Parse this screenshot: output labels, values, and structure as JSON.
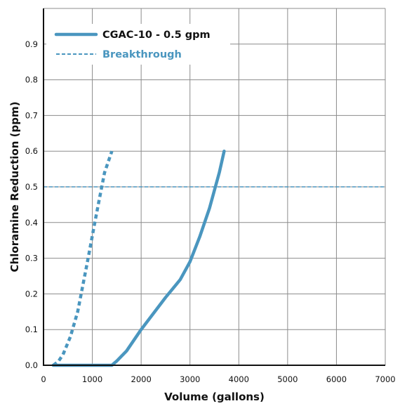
{
  "chart_data": {
    "type": "line",
    "title": "",
    "xlabel": "Volume (gallons)",
    "ylabel": "Chloramine Reduction (ppm)",
    "xlim": [
      0,
      7000
    ],
    "ylim": [
      0,
      1.0
    ],
    "x_ticks": [
      "0",
      "1000",
      "2000",
      "3000",
      "4000",
      "5000",
      "6000",
      "7000"
    ],
    "y_ticks": [
      "0.0",
      "0.1",
      "0.2",
      "0.3",
      "0.4",
      "0.5",
      "0.6",
      "0.7",
      "0.8",
      "0.9"
    ],
    "grid": true,
    "legend_position": "top-left",
    "series": [
      {
        "name": "CGAC-10 - 0.5 gpm",
        "style": "solid",
        "color": "#4a96bf",
        "points": [
          [
            200,
            0.0
          ],
          [
            1000,
            0.0
          ],
          [
            1400,
            0.0
          ],
          [
            1500,
            0.012
          ],
          [
            1700,
            0.04
          ],
          [
            2000,
            0.1
          ],
          [
            2500,
            0.19
          ],
          [
            2800,
            0.24
          ],
          [
            3000,
            0.29
          ],
          [
            3200,
            0.36
          ],
          [
            3400,
            0.44
          ],
          [
            3600,
            0.54
          ],
          [
            3700,
            0.6
          ]
        ]
      },
      {
        "name": "Breakthrough",
        "style": "dashed",
        "color": "#4a96bf",
        "points": [
          [
            200,
            0.0
          ],
          [
            300,
            0.01
          ],
          [
            400,
            0.03
          ],
          [
            550,
            0.08
          ],
          [
            700,
            0.15
          ],
          [
            900,
            0.29
          ],
          [
            1050,
            0.4
          ],
          [
            1150,
            0.47
          ],
          [
            1250,
            0.54
          ],
          [
            1400,
            0.6
          ]
        ]
      },
      {
        "name": "",
        "style": "thin-dashed",
        "color": "#4a96bf",
        "points": [
          [
            0,
            0.5
          ],
          [
            7000,
            0.5
          ]
        ]
      }
    ]
  }
}
